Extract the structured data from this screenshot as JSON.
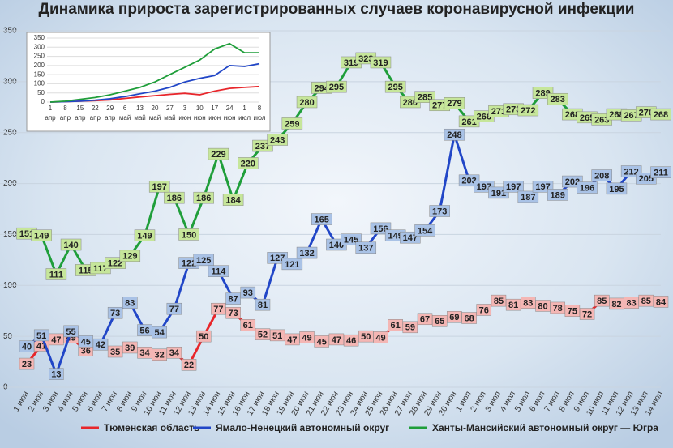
{
  "chart_data": [
    {
      "type": "line",
      "title": "Динамика прироста зарегистрированных случаев коронавирусной инфекции",
      "categories": [
        "1 июн",
        "2 июн",
        "3 июн",
        "4 июн",
        "5 июн",
        "6 июн",
        "7 июн",
        "8 июн",
        "9 июн",
        "10 июн",
        "11 июн",
        "12 июн",
        "13 июн",
        "14 июн",
        "15 июн",
        "16 июн",
        "17 июн",
        "18 июн",
        "19 июн",
        "20 июн",
        "21 июн",
        "22 июн",
        "23 июн",
        "24 июн",
        "25 июн",
        "26 июн",
        "27 июн",
        "28 июн",
        "29 июн",
        "30 июн",
        "1 июл",
        "2 июл",
        "3 июл",
        "4 июл",
        "5 июл",
        "6 июл",
        "7 июл",
        "8 июл",
        "9 июл",
        "10 июл",
        "11 июл",
        "12 июл",
        "13 июл",
        "14 июл"
      ],
      "series": [
        {
          "name": "Тюменская область",
          "color": "#e8262b",
          "label_fill": "#f4b6b4",
          "values": [
            23,
            41,
            47,
            49,
            36,
            42,
            35,
            39,
            34,
            32,
            34,
            22,
            50,
            77,
            73,
            61,
            52,
            51,
            47,
            49,
            45,
            47,
            46,
            50,
            49,
            61,
            59,
            67,
            65,
            69,
            68,
            76,
            85,
            81,
            83,
            80,
            78,
            75,
            72,
            85,
            82,
            83,
            85,
            84
          ]
        },
        {
          "name": "Ямало-Ненецкий автономный округ",
          "color": "#2146c7",
          "label_fill": "#a9c2e6",
          "values": [
            40,
            51,
            13,
            55,
            45,
            42,
            73,
            83,
            56,
            54,
            77,
            122,
            125,
            114,
            87,
            93,
            81,
            127,
            121,
            132,
            165,
            140,
            145,
            137,
            156,
            149,
            147,
            154,
            173,
            248,
            203,
            197,
            191,
            197,
            187,
            197,
            189,
            202,
            196,
            208,
            195,
            212,
            205,
            211
          ]
        },
        {
          "name": "Ханты-Мансийский автономный округ — Югра",
          "color": "#1f9e3a",
          "label_fill": "#c6e69a",
          "values": [
            151,
            149,
            111,
            140,
            115,
            117,
            122,
            129,
            149,
            197,
            186,
            150,
            186,
            229,
            184,
            220,
            237,
            243,
            259,
            280,
            294,
            295,
            319,
            323,
            319,
            295,
            280,
            285,
            277,
            279,
            261,
            266,
            271,
            273,
            272,
            289,
            283,
            268,
            265,
            263,
            268,
            267,
            270,
            268
          ]
        }
      ],
      "ylim": [
        0,
        350
      ],
      "yticks": [
        0,
        50,
        100,
        150,
        200,
        250,
        300,
        350
      ],
      "grid": true
    },
    {
      "type": "line",
      "categories": [
        "1 апр",
        "8 апр",
        "15 апр",
        "22 апр",
        "29 апр",
        "6 май",
        "13 май",
        "20 май",
        "27 май",
        "3 июн",
        "10 июн",
        "17 июн",
        "24 июн",
        "1 июл",
        "8 июл"
      ],
      "series": [
        {
          "name": "Тюменская область",
          "color": "#e8262b",
          "values": [
            0,
            2,
            5,
            8,
            12,
            20,
            28,
            35,
            42,
            48,
            40,
            60,
            75,
            80,
            85
          ]
        },
        {
          "name": "Ямало-Ненецкий автономный округ",
          "color": "#2146c7",
          "values": [
            0,
            2,
            5,
            10,
            18,
            30,
            45,
            60,
            80,
            110,
            130,
            145,
            200,
            195,
            210
          ]
        },
        {
          "name": "Ханты-Мансийский автономный округ — Югра",
          "color": "#1f9e3a",
          "values": [
            0,
            5,
            15,
            25,
            40,
            60,
            80,
            110,
            150,
            190,
            230,
            290,
            320,
            270,
            270
          ]
        }
      ],
      "ylim": [
        0,
        350
      ],
      "yticks": [
        0,
        50,
        100,
        150,
        200,
        250,
        300,
        350
      ],
      "grid": true
    }
  ]
}
